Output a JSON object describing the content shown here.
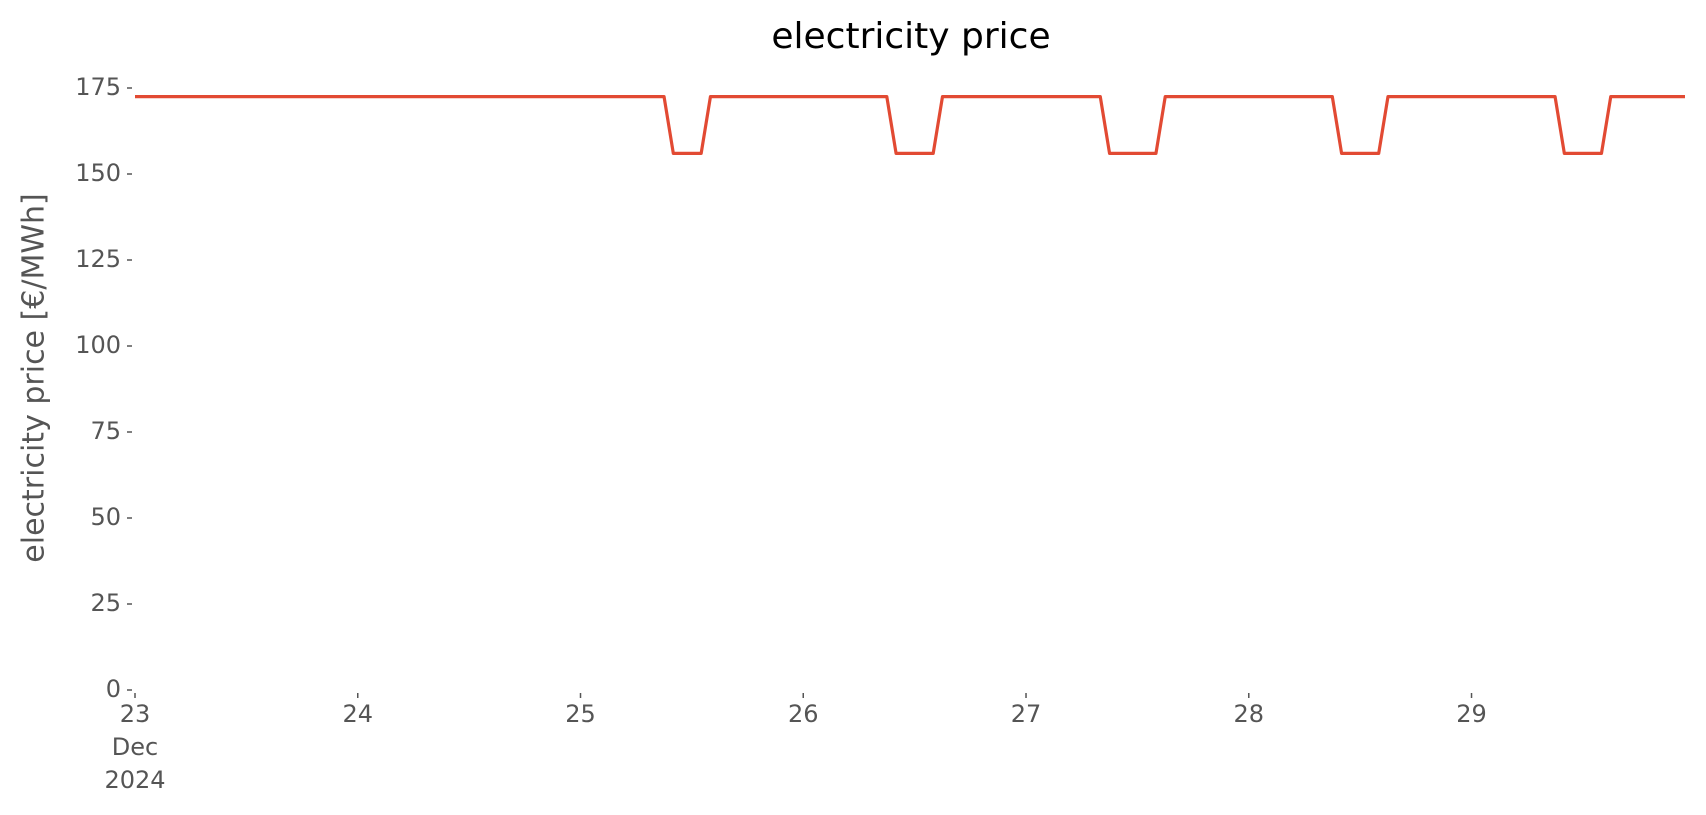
{
  "chart_data": {
    "type": "line",
    "title": "electricity price",
    "ylabel": "electricity price [€/MWh]",
    "x": [
      "2024-12-23T00:00",
      "2024-12-25T09:00",
      "2024-12-25T10:00",
      "2024-12-25T13:00",
      "2024-12-25T14:00",
      "2024-12-26T09:00",
      "2024-12-26T10:00",
      "2024-12-26T14:00",
      "2024-12-26T15:00",
      "2024-12-27T08:00",
      "2024-12-27T09:00",
      "2024-12-27T14:00",
      "2024-12-27T15:00",
      "2024-12-28T09:00",
      "2024-12-28T10:00",
      "2024-12-28T14:00",
      "2024-12-28T15:00",
      "2024-12-29T09:00",
      "2024-12-29T10:00",
      "2024-12-29T14:00",
      "2024-12-29T15:00",
      "2024-12-29T23:00"
    ],
    "series": [
      {
        "name": "electricity price",
        "color": "#e24a33",
        "values": [
          172.5,
          172.5,
          156,
          156,
          172.5,
          172.5,
          156,
          156,
          172.5,
          172.5,
          156,
          156,
          172.5,
          172.5,
          156,
          156,
          172.5,
          172.5,
          156,
          156,
          172.5,
          172.5
        ]
      }
    ],
    "xlim": [
      "2024-12-23T00:00",
      "2024-12-29T23:00"
    ],
    "xticks": [
      {
        "value": "2024-12-23T00:00",
        "label": "23\nDec\n2024"
      },
      {
        "value": "2024-12-24T00:00",
        "label": "24"
      },
      {
        "value": "2024-12-25T00:00",
        "label": "25"
      },
      {
        "value": "2024-12-26T00:00",
        "label": "26"
      },
      {
        "value": "2024-12-27T00:00",
        "label": "27"
      },
      {
        "value": "2024-12-28T00:00",
        "label": "28"
      },
      {
        "value": "2024-12-29T00:00",
        "label": "29"
      }
    ],
    "ylim": [
      0,
      175
    ],
    "yticks": [
      0,
      25,
      50,
      75,
      100,
      125,
      150,
      175
    ],
    "grid": false
  }
}
